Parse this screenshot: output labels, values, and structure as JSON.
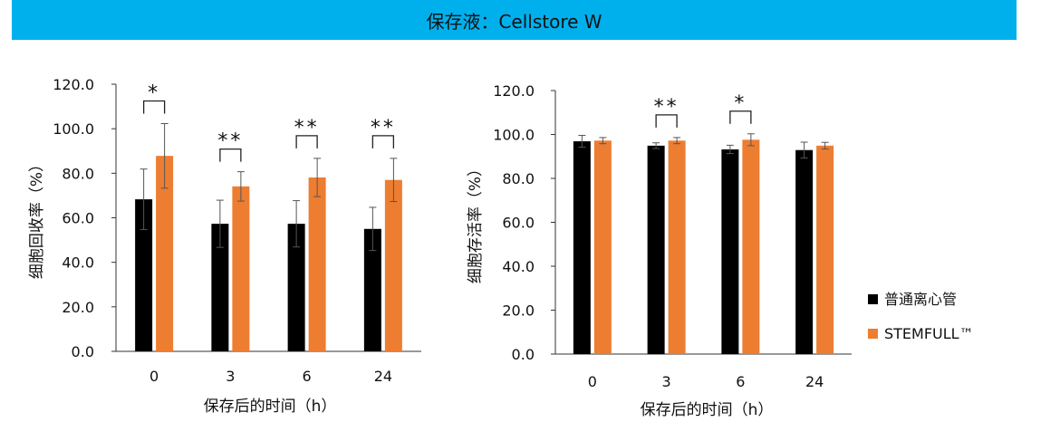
{
  "header": {
    "title": "保存液：Cellstore W"
  },
  "colors": {
    "banner": "#00b0ec",
    "series_black": "#000000",
    "series_orange": "#ed7d31"
  },
  "legend": [
    "普通离心管",
    "STEMFULL™"
  ],
  "chart_data": [
    {
      "type": "bar",
      "ylabel": "细胞回收率（%）",
      "xlabel": "保存后的时间（h）",
      "categories": [
        "0",
        "3",
        "6",
        "24"
      ],
      "ylim": [
        0,
        120
      ],
      "yticks": [
        "0.0",
        "20.0",
        "40.0",
        "60.0",
        "80.0",
        "100.0",
        "120.0"
      ],
      "series": [
        {
          "name": "普通离心管",
          "values": [
            68.3,
            57.3,
            57.3,
            55.0
          ],
          "errors": [
            13.6,
            10.6,
            10.4,
            9.7
          ]
        },
        {
          "name": "STEMFULL™",
          "values": [
            87.8,
            74.1,
            78.1,
            77.0
          ],
          "errors": [
            14.5,
            6.6,
            8.6,
            9.7
          ]
        }
      ],
      "significance": [
        "*",
        "**",
        "**",
        "**"
      ]
    },
    {
      "type": "bar",
      "ylabel": "细胞存活率（%）",
      "xlabel": "保存后的时间（h）",
      "categories": [
        "0",
        "3",
        "6",
        "24"
      ],
      "ylim": [
        0,
        120
      ],
      "yticks": [
        "0.0",
        "20.0",
        "40.0",
        "60.0",
        "80.0",
        "100.0",
        "120.0"
      ],
      "series": [
        {
          "name": "普通离心管",
          "values": [
            96.9,
            94.9,
            93.2,
            92.9
          ],
          "errors": [
            2.7,
            1.3,
            1.9,
            3.6
          ]
        },
        {
          "name": "STEMFULL™",
          "values": [
            97.2,
            97.2,
            97.6,
            94.9
          ],
          "errors": [
            1.4,
            1.4,
            2.7,
            1.5
          ]
        }
      ],
      "significance": [
        "",
        "**",
        "*",
        ""
      ]
    }
  ]
}
